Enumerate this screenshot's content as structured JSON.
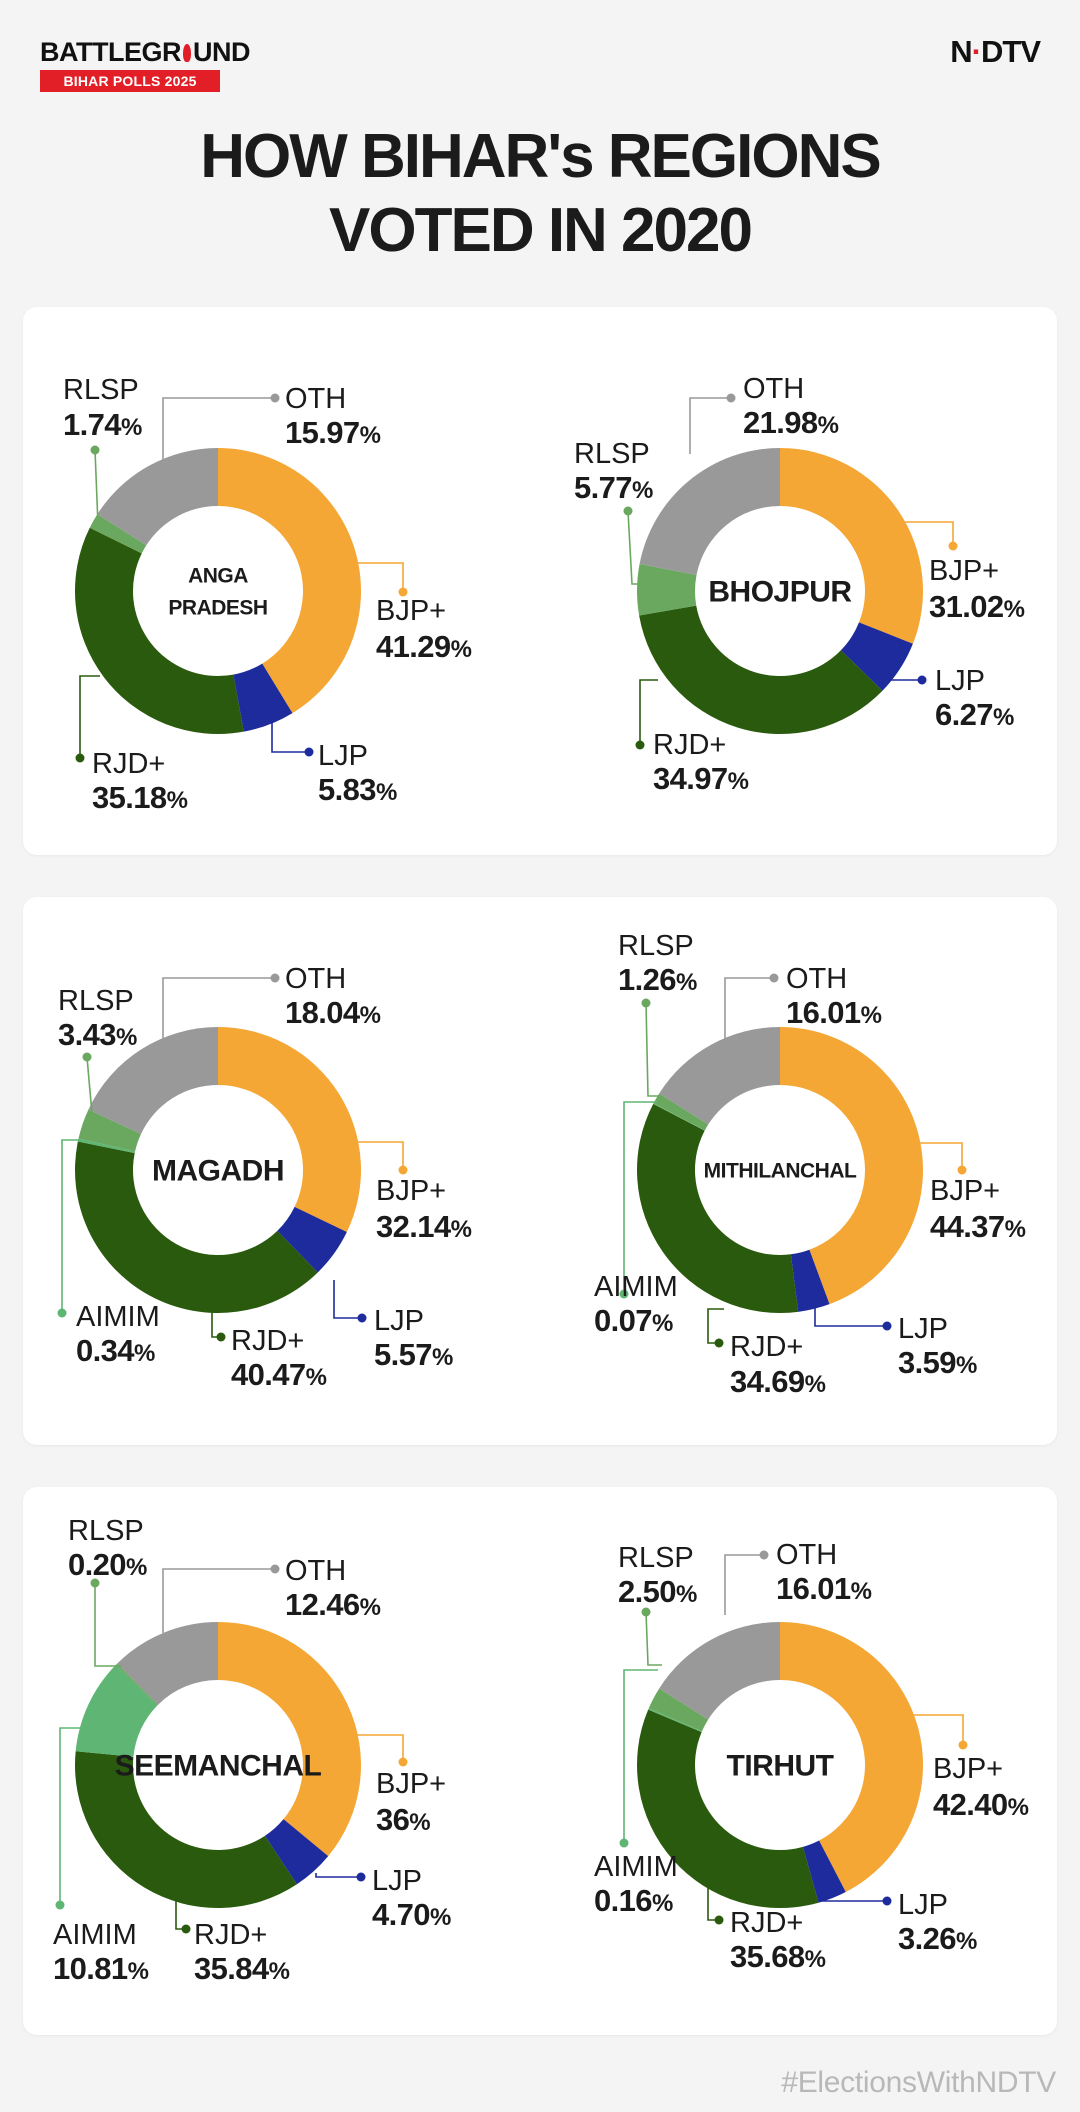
{
  "header": {
    "brand_left_a": "BATTLEGR",
    "brand_left_b": "UND",
    "brand_left_sub": "BIHAR POLLS 2025",
    "brand_right_a": "N",
    "brand_right_b": "DTV",
    "title_line1": "HOW BIHAR's REGIONS",
    "title_line2": "VOTED IN 2020"
  },
  "footer": {
    "hashtag": "#ElectionsWithNDTV"
  },
  "colors": {
    "BJP+": "#f4a734",
    "LJP": "#1e2b9c",
    "RJD+": "#2a5a0d",
    "AIMIM": "#5fb573",
    "RLSP": "#6aa860",
    "OTH": "#999999",
    "background": "#f4f4f4",
    "card": "#ffffff",
    "accent": "#e21f26"
  },
  "chart_data": [
    {
      "type": "pie",
      "title": "ANGA PRADESH",
      "title_lines": [
        "ANGA",
        "PRADESH"
      ],
      "slices": [
        {
          "party": "BJP+",
          "value": 41.29,
          "label": "41.29"
        },
        {
          "party": "LJP",
          "value": 5.83,
          "label": "5.83"
        },
        {
          "party": "RJD+",
          "value": 35.18,
          "label": "35.18"
        },
        {
          "party": "RLSP",
          "value": 1.74,
          "label": "1.74"
        },
        {
          "party": "OTH",
          "value": 15.97,
          "label": "15.97"
        }
      ]
    },
    {
      "type": "pie",
      "title": "BHOJPUR",
      "title_lines": [
        "BHOJPUR"
      ],
      "slices": [
        {
          "party": "BJP+",
          "value": 31.02,
          "label": "31.02"
        },
        {
          "party": "LJP",
          "value": 6.27,
          "label": "6.27"
        },
        {
          "party": "RJD+",
          "value": 34.97,
          "label": "34.97"
        },
        {
          "party": "RLSP",
          "value": 5.77,
          "label": "5.77"
        },
        {
          "party": "OTH",
          "value": 21.98,
          "label": "21.98"
        }
      ]
    },
    {
      "type": "pie",
      "title": "MAGADH",
      "title_lines": [
        "MAGADH"
      ],
      "slices": [
        {
          "party": "BJP+",
          "value": 32.14,
          "label": "32.14"
        },
        {
          "party": "LJP",
          "value": 5.57,
          "label": "5.57"
        },
        {
          "party": "RJD+",
          "value": 40.47,
          "label": "40.47"
        },
        {
          "party": "AIMIM",
          "value": 0.34,
          "label": "0.34"
        },
        {
          "party": "RLSP",
          "value": 3.43,
          "label": "3.43"
        },
        {
          "party": "OTH",
          "value": 18.04,
          "label": "18.04"
        }
      ]
    },
    {
      "type": "pie",
      "title": "MITHILANCHAL",
      "title_lines": [
        "MITHILANCHAL"
      ],
      "slices": [
        {
          "party": "BJP+",
          "value": 44.37,
          "label": "44.37"
        },
        {
          "party": "LJP",
          "value": 3.59,
          "label": "3.59"
        },
        {
          "party": "RJD+",
          "value": 34.69,
          "label": "34.69"
        },
        {
          "party": "AIMIM",
          "value": 0.07,
          "label": "0.07"
        },
        {
          "party": "RLSP",
          "value": 1.26,
          "label": "1.26"
        },
        {
          "party": "OTH",
          "value": 16.01,
          "label": "16.01"
        }
      ]
    },
    {
      "type": "pie",
      "title": "SEEMANCHAL",
      "title_lines": [
        "SEEMANCHAL"
      ],
      "slices": [
        {
          "party": "BJP+",
          "value": 36,
          "label": "36"
        },
        {
          "party": "LJP",
          "value": 4.7,
          "label": "4.70"
        },
        {
          "party": "RJD+",
          "value": 35.84,
          "label": "35.84"
        },
        {
          "party": "AIMIM",
          "value": 10.81,
          "label": "10.81"
        },
        {
          "party": "RLSP",
          "value": 0.2,
          "label": "0.20"
        },
        {
          "party": "OTH",
          "value": 12.46,
          "label": "12.46"
        }
      ]
    },
    {
      "type": "pie",
      "title": "TIRHUT",
      "title_lines": [
        "TIRHUT"
      ],
      "slices": [
        {
          "party": "BJP+",
          "value": 42.4,
          "label": "42.40"
        },
        {
          "party": "LJP",
          "value": 3.26,
          "label": "3.26"
        },
        {
          "party": "RJD+",
          "value": 35.68,
          "label": "35.68"
        },
        {
          "party": "AIMIM",
          "value": 0.16,
          "label": "0.16"
        },
        {
          "party": "RLSP",
          "value": 2.5,
          "label": "2.50"
        },
        {
          "party": "OTH",
          "value": 16.01,
          "label": "16.01"
        }
      ]
    }
  ]
}
